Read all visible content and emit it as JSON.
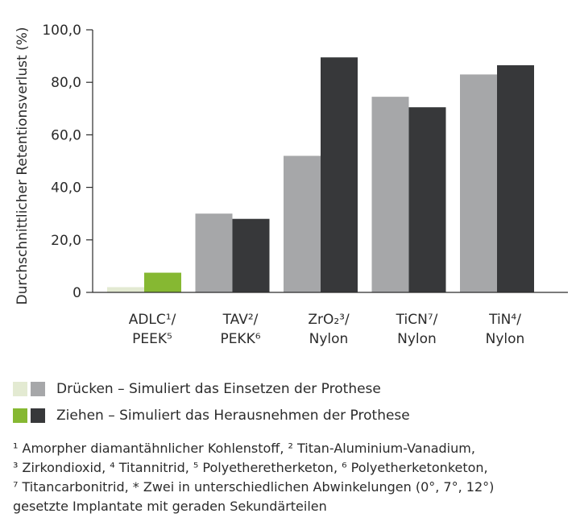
{
  "chart_data": {
    "type": "bar",
    "ylabel": "Durchschnittlicher Retentionsverlust (%)",
    "ylim": [
      0,
      100
    ],
    "yticks": [
      0,
      20,
      40,
      60,
      80,
      100
    ],
    "ytick_labels": [
      "0",
      "20,0",
      "40,0",
      "60,0",
      "80,0",
      "100,0"
    ],
    "categories": [
      {
        "line1": "ADLC¹/",
        "line2": "PEEK⁵",
        "colors": [
          "#e3ead2",
          "#86b832"
        ]
      },
      {
        "line1": "TAV²/",
        "line2": "PEKK⁶",
        "colors": [
          "#a6a7a9",
          "#37383a"
        ]
      },
      {
        "line1": "ZrO₂³/",
        "line2": "Nylon",
        "colors": [
          "#a6a7a9",
          "#37383a"
        ]
      },
      {
        "line1": "TiCN⁷/",
        "line2": "Nylon",
        "colors": [
          "#a6a7a9",
          "#37383a"
        ]
      },
      {
        "line1": "TiN⁴/",
        "line2": "Nylon",
        "colors": [
          "#a6a7a9",
          "#37383a"
        ]
      }
    ],
    "series": [
      {
        "name": "Drücken – Simuliert das Einsetzen der Prothese",
        "values": [
          2.0,
          30.0,
          52.0,
          74.5,
          83.0
        ]
      },
      {
        "name": "Ziehen – Simuliert das Herausnehmen der Prothese",
        "values": [
          7.5,
          28.0,
          89.5,
          70.5,
          86.5
        ]
      }
    ]
  },
  "legend": [
    {
      "label": "Drücken – Simuliert das Einsetzen der Prothese",
      "swatches": [
        "#e3ead2",
        "#a6a7a9"
      ]
    },
    {
      "label": "Ziehen – Simuliert das Herausnehmen der Prothese",
      "swatches": [
        "#86b832",
        "#37383a"
      ]
    }
  ],
  "footnotes": [
    "¹ Amorpher diamantähnlicher Kohlenstoff, ² Titan-Aluminium-Vanadium,",
    "³ Zirkondioxid, ⁴ Titannitrid, ⁵ Polyetheretherketon, ⁶ Polyetherketonketon,",
    "⁷ Titancarbonitrid, * Zwei in unterschiedlichen Abwinkelungen (0°, 7°, 12°)",
    "gesetzte Implantate mit geraden Sekundärteilen"
  ]
}
